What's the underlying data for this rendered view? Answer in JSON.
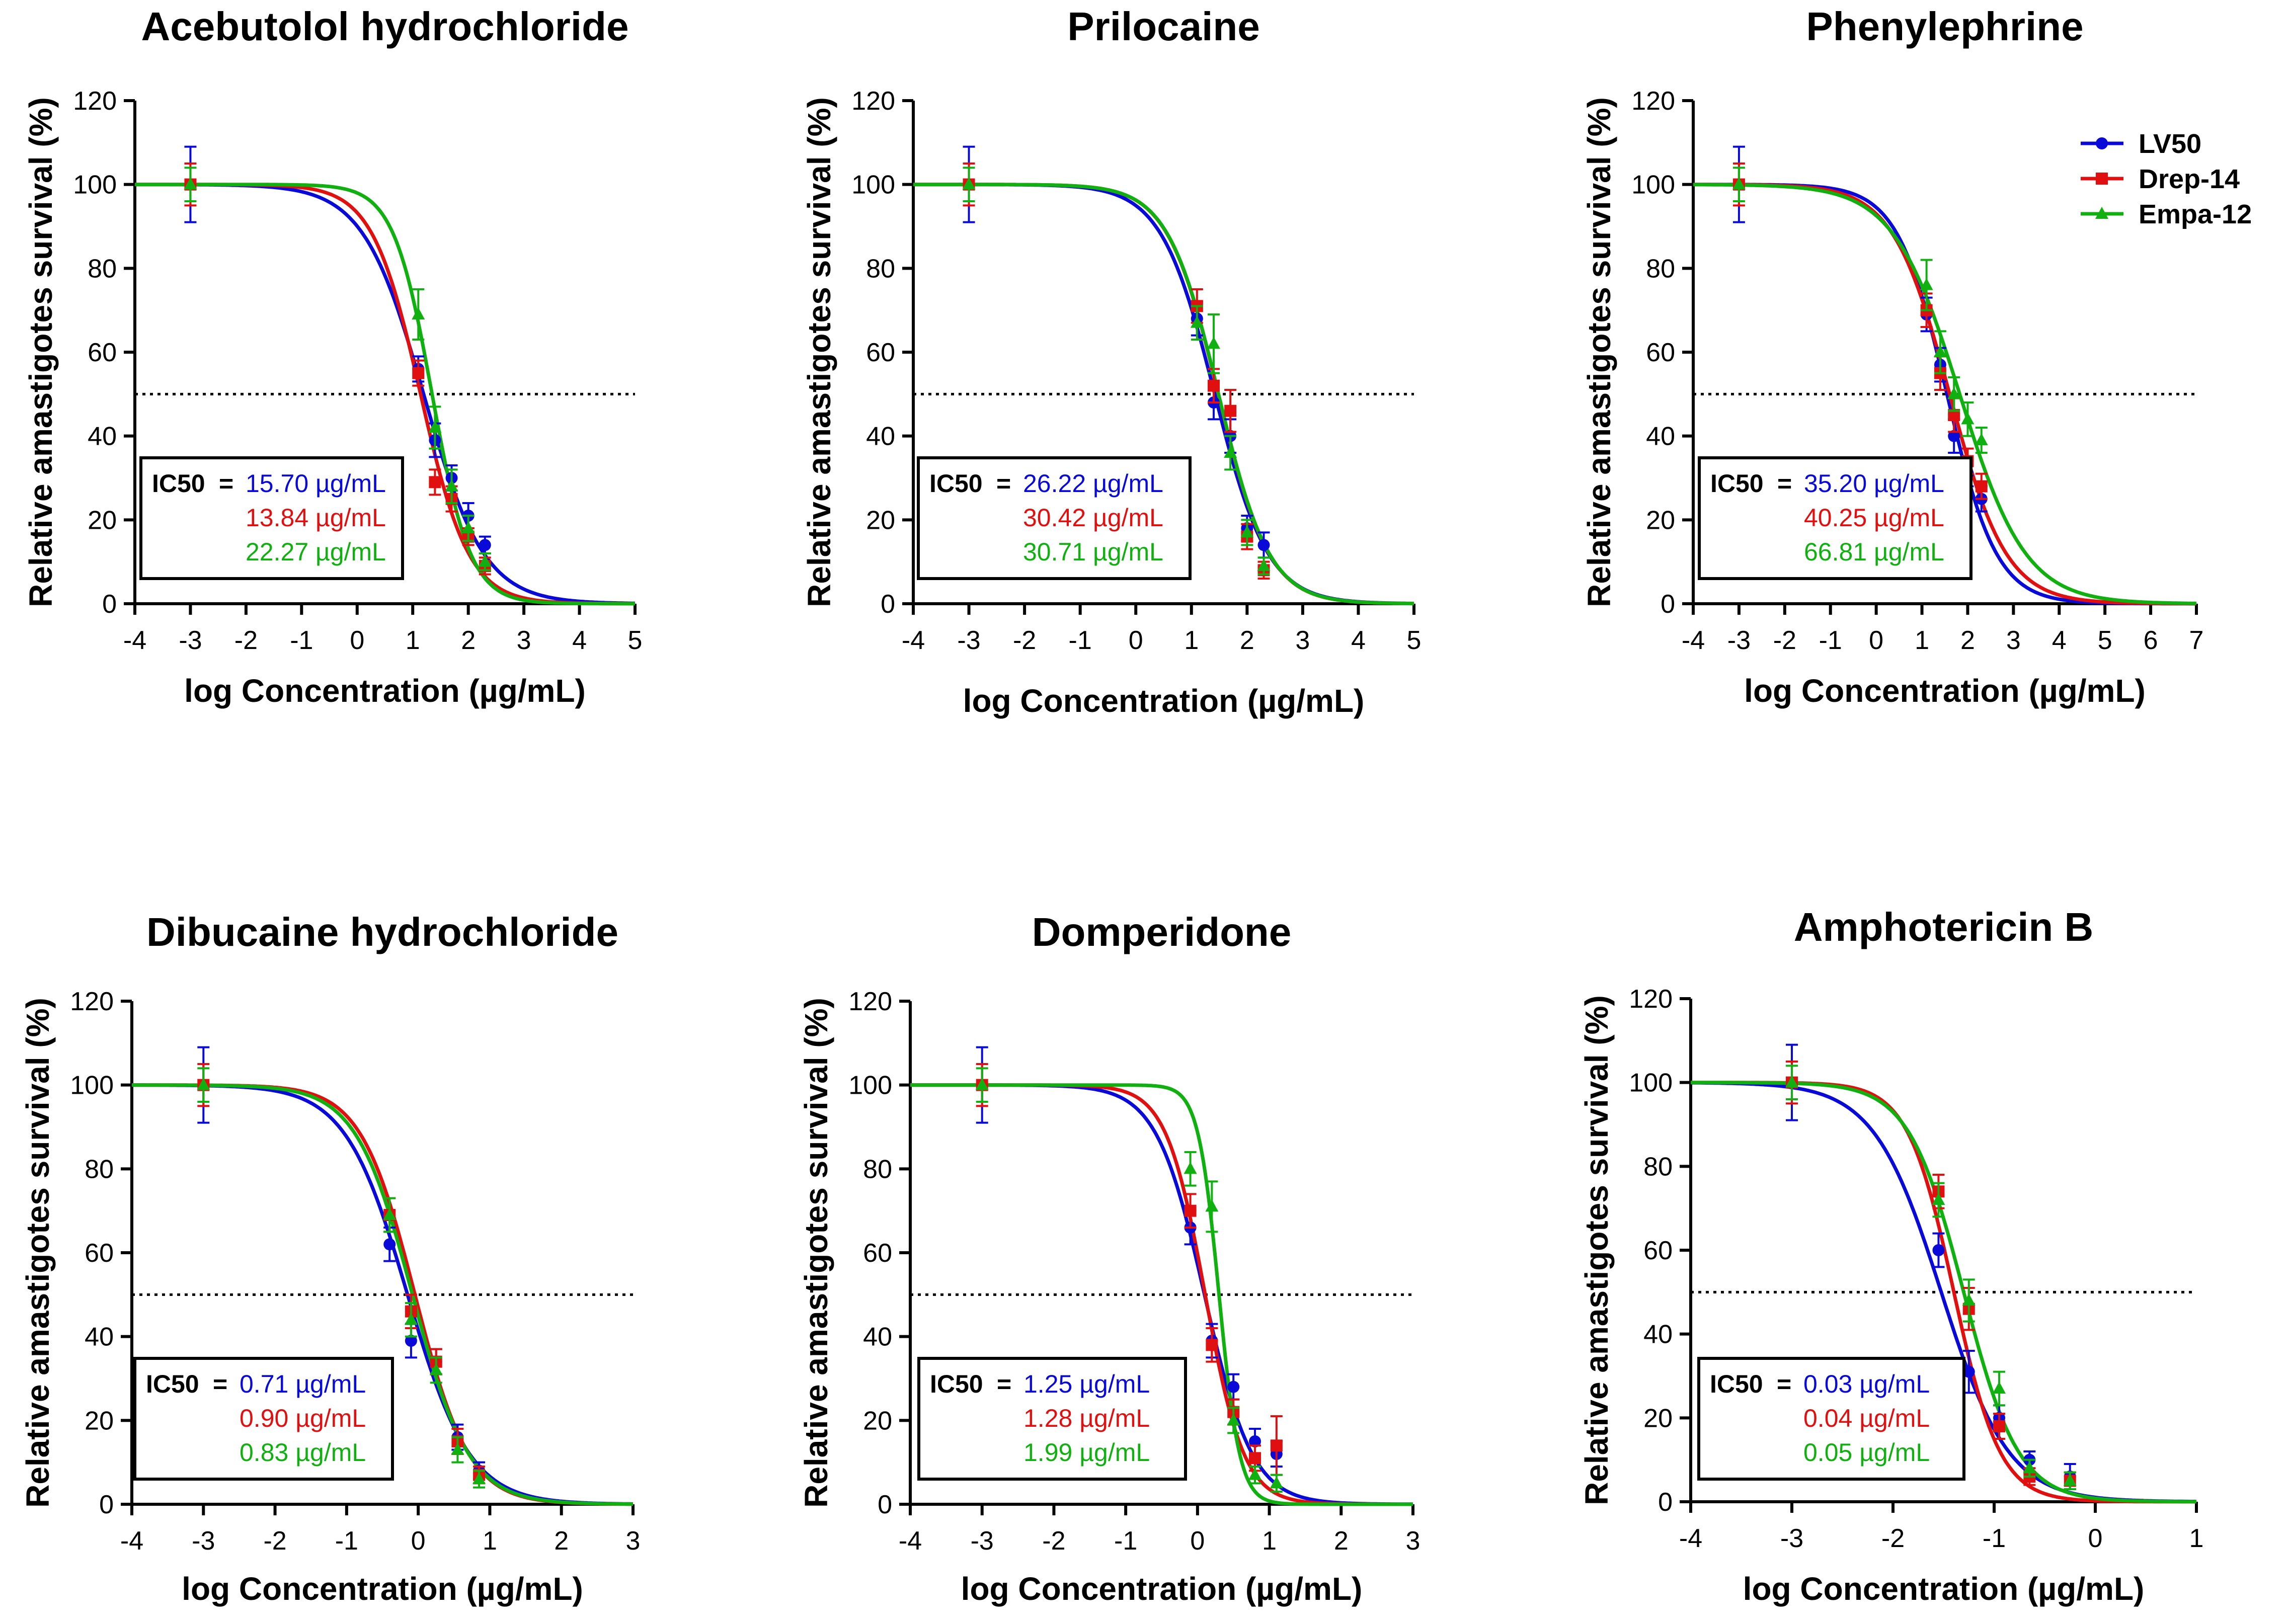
{
  "figure": {
    "series_names": [
      "LV50",
      "Drep-14",
      "Empa-12"
    ],
    "series_colors": [
      "#0a0ad8",
      "#e01010",
      "#10b010"
    ],
    "ic50_label": "IC50",
    "ic50_equals": "="
  },
  "chart_data": [
    {
      "type": "line",
      "title": "Acebutolol hydrochloride",
      "xlabel": "log Concentration (µg/mL)",
      "ylabel": "Relative amastigotes survival (%)",
      "xlim": [
        -4,
        5
      ],
      "ylim": [
        0,
        120
      ],
      "xticks": [
        "-4",
        "-3",
        "-2",
        "-1",
        "0",
        "1",
        "2",
        "3",
        "4",
        "5"
      ],
      "yticks": [
        "0",
        "20",
        "40",
        "60",
        "80",
        "100",
        "120"
      ],
      "reference_line_y": 50,
      "legend": false,
      "ic50_values": [
        "15.70 µg/mL",
        "13.84 µg/mL",
        "22.27 µg/mL"
      ],
      "series": [
        {
          "name": "LV50",
          "log_ic50": 1.196,
          "hill": -0.8,
          "points": [
            [
              -3,
              100,
              9
            ],
            [
              1.1,
              56,
              3
            ],
            [
              1.4,
              39,
              4
            ],
            [
              1.7,
              30,
              3
            ],
            [
              2.0,
              21,
              3
            ],
            [
              2.3,
              14,
              2
            ]
          ]
        },
        {
          "name": "Drep-14",
          "log_ic50": 1.141,
          "hill": -1.0,
          "points": [
            [
              -3,
              100,
              5
            ],
            [
              1.1,
              55,
              3
            ],
            [
              1.4,
              29,
              3
            ],
            [
              1.7,
              25,
              3
            ],
            [
              2.0,
              16,
              2
            ],
            [
              2.3,
              9,
              2
            ]
          ]
        },
        {
          "name": "Empa-12",
          "log_ic50": 1.348,
          "hill": -1.25,
          "points": [
            [
              -3,
              100,
              4
            ],
            [
              1.1,
              69,
              6
            ],
            [
              1.4,
              42,
              5
            ],
            [
              1.7,
              28,
              4
            ],
            [
              2.0,
              18,
              3
            ],
            [
              2.3,
              10,
              2
            ]
          ]
        }
      ]
    },
    {
      "type": "line",
      "title": "Prilocaine",
      "xlabel": "log Concentration (µg/mL)",
      "ylabel": "Relative amastigotes survival (%)",
      "xlim": [
        -4,
        5
      ],
      "ylim": [
        0,
        120
      ],
      "xticks": [
        "-4",
        "-3",
        "-2",
        "-1",
        "0",
        "1",
        "2",
        "3",
        "4",
        "5"
      ],
      "yticks": [
        "0",
        "20",
        "40",
        "60",
        "80",
        "100",
        "120"
      ],
      "reference_line_y": 50,
      "legend": false,
      "ic50_values": [
        "26.22 µg/mL",
        "30.42 µg/mL",
        "30.71 µg/mL"
      ],
      "series": [
        {
          "name": "LV50",
          "log_ic50": 1.419,
          "hill": -0.9,
          "points": [
            [
              -3,
              100,
              9
            ],
            [
              1.1,
              68,
              4
            ],
            [
              1.4,
              48,
              4
            ],
            [
              1.7,
              40,
              4
            ],
            [
              2.0,
              18,
              3
            ],
            [
              2.3,
              14,
              3
            ]
          ]
        },
        {
          "name": "Drep-14",
          "log_ic50": 1.483,
          "hill": -0.95,
          "points": [
            [
              -3,
              100,
              5
            ],
            [
              1.1,
              71,
              4
            ],
            [
              1.4,
              52,
              4
            ],
            [
              1.7,
              46,
              5
            ],
            [
              2.0,
              16,
              3
            ],
            [
              2.3,
              8,
              2
            ]
          ]
        },
        {
          "name": "Empa-12",
          "log_ic50": 1.487,
          "hill": -0.95,
          "points": [
            [
              -3,
              100,
              4
            ],
            [
              1.1,
              67,
              4
            ],
            [
              1.4,
              62,
              7
            ],
            [
              1.7,
              36,
              4
            ],
            [
              2.0,
              17,
              3
            ],
            [
              2.3,
              9,
              2
            ]
          ]
        }
      ]
    },
    {
      "type": "line",
      "title": "Phenylephrine",
      "xlabel": "log Concentration (µg/mL)",
      "ylabel": "Relative amastigotes survival (%)",
      "xlim": [
        -4,
        7
      ],
      "ylim": [
        0,
        120
      ],
      "xticks": [
        "-4",
        "-3",
        "-2",
        "-1",
        "0",
        "1",
        "2",
        "3",
        "4",
        "5",
        "6",
        "7"
      ],
      "yticks": [
        "0",
        "20",
        "40",
        "60",
        "80",
        "100",
        "120"
      ],
      "reference_line_y": 50,
      "legend": true,
      "ic50_values": [
        "35.20 µg/mL",
        "40.25 µg/mL",
        "66.81 µg/mL"
      ],
      "series": [
        {
          "name": "LV50",
          "log_ic50": 1.547,
          "hill": -0.8,
          "points": [
            [
              -3,
              100,
              9
            ],
            [
              1.1,
              69,
              4
            ],
            [
              1.4,
              57,
              4
            ],
            [
              1.7,
              40,
              4
            ],
            [
              2.0,
              31,
              3
            ],
            [
              2.3,
              25,
              3
            ]
          ]
        },
        {
          "name": "Drep-14",
          "log_ic50": 1.605,
          "hill": -0.7,
          "points": [
            [
              -3,
              100,
              5
            ],
            [
              1.1,
              70,
              4
            ],
            [
              1.4,
              55,
              4
            ],
            [
              1.7,
              45,
              4
            ],
            [
              2.0,
              34,
              3
            ],
            [
              2.3,
              28,
              3
            ]
          ]
        },
        {
          "name": "Empa-12",
          "log_ic50": 1.825,
          "hill": -0.6,
          "points": [
            [
              -3,
              100,
              4
            ],
            [
              1.1,
              76,
              6
            ],
            [
              1.4,
              60,
              5
            ],
            [
              1.7,
              50,
              4
            ],
            [
              2.0,
              44,
              4
            ],
            [
              2.3,
              39,
              3
            ]
          ]
        }
      ]
    },
    {
      "type": "line",
      "title": "Dibucaine hydrochloride",
      "xlabel": "log Concentration (µg/mL)",
      "ylabel": "Relative amastigotes survival (%)",
      "xlim": [
        -4,
        3
      ],
      "ylim": [
        0,
        120
      ],
      "xticks": [
        "-4",
        "-3",
        "-2",
        "-1",
        "0",
        "1",
        "2",
        "3"
      ],
      "yticks": [
        "0",
        "20",
        "40",
        "60",
        "80",
        "100",
        "120"
      ],
      "reference_line_y": 50,
      "legend": false,
      "ic50_values": [
        "0.71 µg/mL",
        "0.90 µg/mL",
        "0.83 µg/mL"
      ],
      "series": [
        {
          "name": "LV50",
          "log_ic50": -0.149,
          "hill": -1.0,
          "points": [
            [
              -3,
              100,
              9
            ],
            [
              -0.4,
              62,
              4
            ],
            [
              -0.1,
              39,
              4
            ],
            [
              0.25,
              34,
              3
            ],
            [
              0.55,
              16,
              3
            ],
            [
              0.85,
              8,
              2
            ]
          ]
        },
        {
          "name": "Drep-14",
          "log_ic50": -0.046,
          "hill": -1.15,
          "points": [
            [
              -3,
              100,
              5
            ],
            [
              -0.4,
              69,
              4
            ],
            [
              -0.1,
              46,
              4
            ],
            [
              0.25,
              34,
              3
            ],
            [
              0.55,
              15,
              3
            ],
            [
              0.85,
              7,
              2
            ]
          ]
        },
        {
          "name": "Empa-12",
          "log_ic50": -0.081,
          "hill": -1.1,
          "points": [
            [
              -3,
              100,
              4
            ],
            [
              -0.4,
              69,
              4
            ],
            [
              -0.1,
              44,
              4
            ],
            [
              0.25,
              32,
              3
            ],
            [
              0.55,
              13,
              3
            ],
            [
              0.85,
              6,
              2
            ]
          ]
        }
      ]
    },
    {
      "type": "line",
      "title": "Domperidone",
      "xlabel": "log Concentration (µg/mL)",
      "ylabel": "Relative amastigotes survival (%)",
      "xlim": [
        -4,
        3
      ],
      "ylim": [
        0,
        120
      ],
      "xticks": [
        "-4",
        "-3",
        "-2",
        "-1",
        "0",
        "1",
        "2",
        "3"
      ],
      "yticks": [
        "0",
        "20",
        "40",
        "60",
        "80",
        "100",
        "120"
      ],
      "reference_line_y": 50,
      "legend": false,
      "ic50_values": [
        "1.25 µg/mL",
        "1.28 µg/mL",
        "1.99 µg/mL"
      ],
      "series": [
        {
          "name": "LV50",
          "log_ic50": 0.097,
          "hill": -1.3,
          "points": [
            [
              -3,
              100,
              9
            ],
            [
              -0.1,
              66,
              4
            ],
            [
              0.2,
              39,
              4
            ],
            [
              0.5,
              28,
              3
            ],
            [
              0.8,
              15,
              3
            ],
            [
              1.1,
              12,
              3
            ]
          ]
        },
        {
          "name": "Drep-14",
          "log_ic50": 0.107,
          "hill": -1.6,
          "points": [
            [
              -3,
              100,
              5
            ],
            [
              -0.1,
              70,
              4
            ],
            [
              0.2,
              38,
              4
            ],
            [
              0.5,
              22,
              3
            ],
            [
              0.8,
              11,
              3
            ],
            [
              1.1,
              14,
              7
            ]
          ]
        },
        {
          "name": "Empa-12",
          "log_ic50": 0.299,
          "hill": -3.0,
          "points": [
            [
              -3,
              100,
              4
            ],
            [
              -0.1,
              80,
              4
            ],
            [
              0.2,
              71,
              6
            ],
            [
              0.5,
              20,
              3
            ],
            [
              0.8,
              7,
              2
            ],
            [
              1.1,
              5,
              2
            ]
          ]
        }
      ]
    },
    {
      "type": "line",
      "title": "Amphotericin B",
      "xlabel": "log Concentration (µg/mL)",
      "ylabel": "Relative amastigotes survival (%)",
      "xlim": [
        -4,
        1
      ],
      "ylim": [
        0,
        120
      ],
      "xticks": [
        "-4",
        "-3",
        "-2",
        "-1",
        "0",
        "1"
      ],
      "yticks": [
        "0",
        "20",
        "40",
        "60",
        "80",
        "100",
        "120"
      ],
      "reference_line_y": 50,
      "legend": false,
      "ic50_values": [
        "0.03 µg/mL",
        "0.04 µg/mL",
        "0.05 µg/mL"
      ],
      "series": [
        {
          "name": "LV50",
          "log_ic50": -1.523,
          "hill": -1.3,
          "points": [
            [
              -3,
              100,
              9
            ],
            [
              -1.55,
              60,
              4
            ],
            [
              -1.25,
              31,
              5
            ],
            [
              -0.95,
              20,
              3
            ],
            [
              -0.65,
              10,
              2
            ],
            [
              -0.25,
              6,
              3
            ]
          ]
        },
        {
          "name": "Drep-14",
          "log_ic50": -1.398,
          "hill": -1.9,
          "points": [
            [
              -3,
              100,
              5
            ],
            [
              -1.55,
              74,
              4
            ],
            [
              -1.25,
              46,
              5
            ],
            [
              -0.95,
              18,
              3
            ],
            [
              -0.65,
              6,
              2
            ],
            [
              -0.25,
              5,
              2
            ]
          ]
        },
        {
          "name": "Empa-12",
          "log_ic50": -1.301,
          "hill": -1.6,
          "points": [
            [
              -3,
              100,
              4
            ],
            [
              -1.55,
              72,
              4
            ],
            [
              -1.25,
              48,
              5
            ],
            [
              -0.95,
              27,
              4
            ],
            [
              -0.65,
              8,
              2
            ],
            [
              -0.25,
              5,
              2
            ]
          ]
        }
      ]
    }
  ]
}
